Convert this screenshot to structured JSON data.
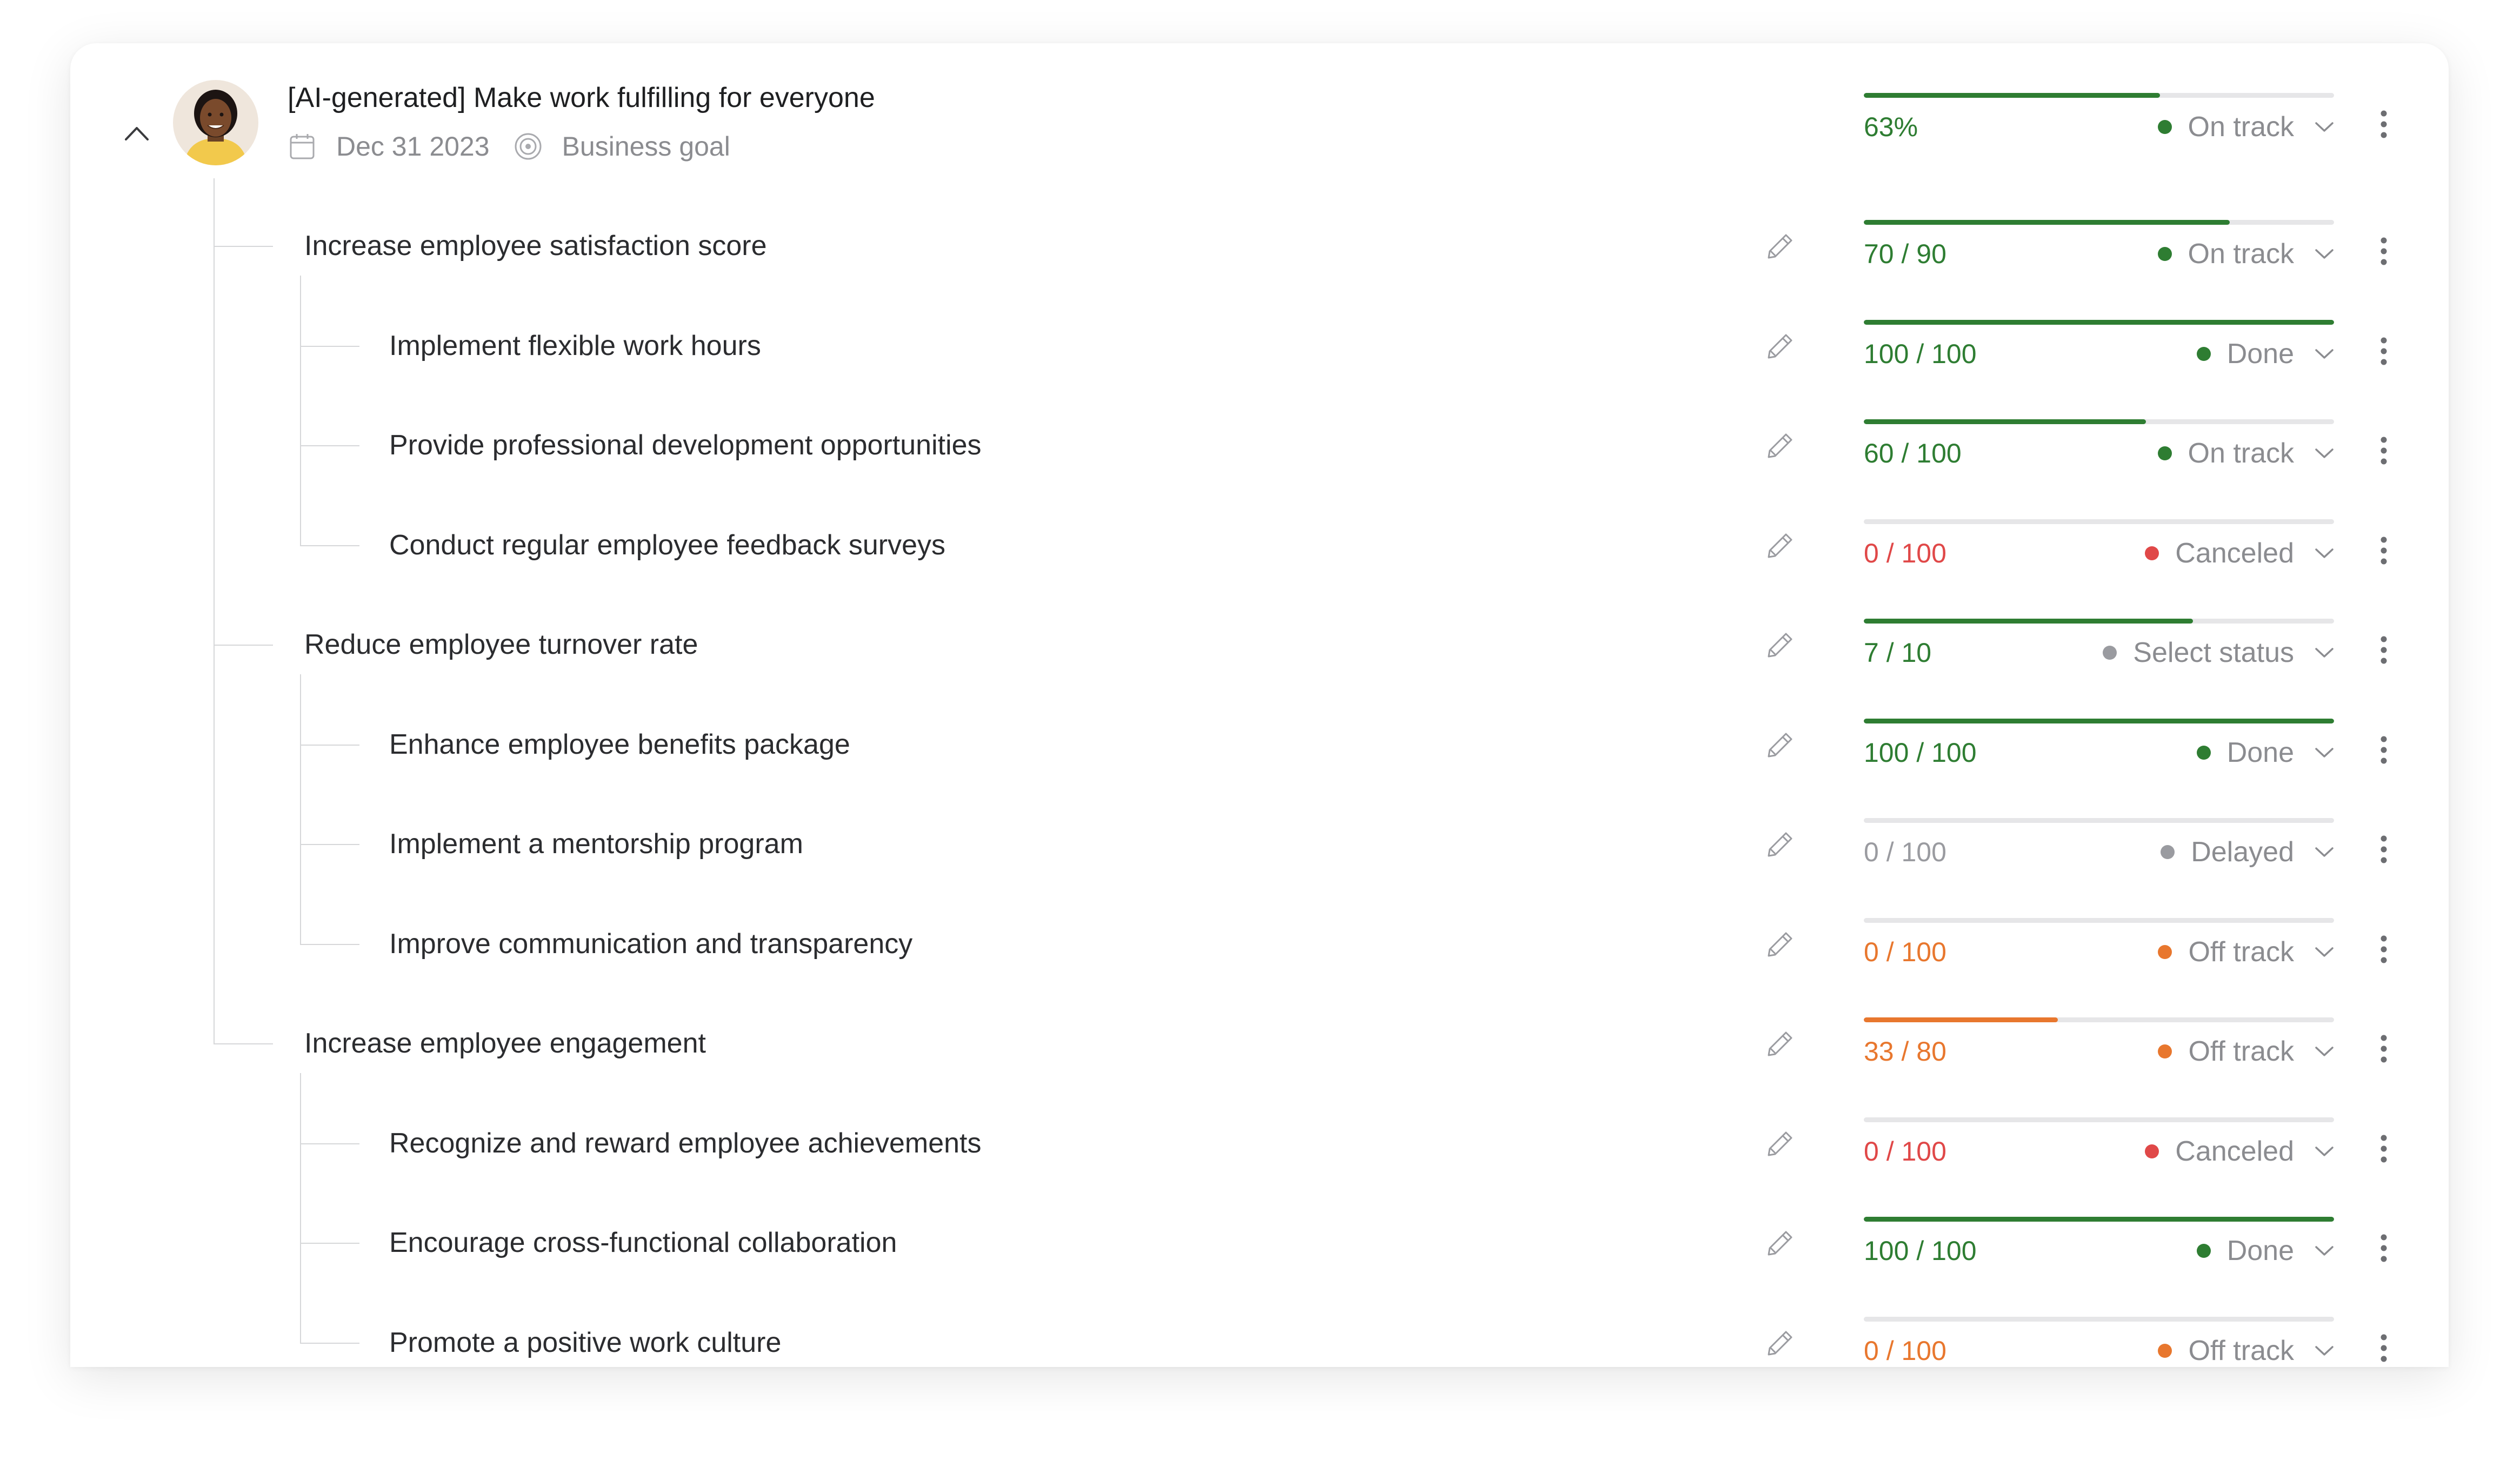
{
  "goal": {
    "title": "[AI-generated] Make work fulfilling for everyone",
    "due_date": "Dec 31 2023",
    "type_label": "Business goal",
    "progress_text": "63%",
    "progress": 0.63,
    "status": "On track",
    "status_color": "#2e7d32"
  },
  "colors": {
    "green": "#2e7d32",
    "orange": "#e8772e",
    "red": "#e04848",
    "gray": "#9a9ba0",
    "track": "#e6e6e8",
    "line": "#d6d7d9"
  },
  "rows": [
    {
      "label": "Increase employee satisfaction score",
      "level": 1,
      "progress_text": "70 / 90",
      "progress": 0.778,
      "text_color": "#2e7d32",
      "bar_color": "#2e7d32",
      "status": "On track",
      "dot_color": "#2e7d32"
    },
    {
      "label": "Implement flexible work hours",
      "level": 2,
      "progress_text": "100 / 100",
      "progress": 1.0,
      "text_color": "#2e7d32",
      "bar_color": "#2e7d32",
      "status": "Done",
      "dot_color": "#2e7d32"
    },
    {
      "label": "Provide professional development opportunities",
      "level": 2,
      "progress_text": "60 / 100",
      "progress": 0.6,
      "text_color": "#2e7d32",
      "bar_color": "#2e7d32",
      "status": "On track",
      "dot_color": "#2e7d32"
    },
    {
      "label": "Conduct regular employee feedback surveys",
      "level": 2,
      "progress_text": "0 / 100",
      "progress": 0.0,
      "text_color": "#e04848",
      "bar_color": "#e04848",
      "status": "Canceled",
      "dot_color": "#e04848"
    },
    {
      "label": "Reduce employee turnover rate",
      "level": 1,
      "progress_text": "7 / 10",
      "progress": 0.7,
      "text_color": "#2e7d32",
      "bar_color": "#2e7d32",
      "status": "Select status",
      "dot_color": "#9a9ba0"
    },
    {
      "label": "Enhance employee benefits package",
      "level": 2,
      "progress_text": "100 / 100",
      "progress": 1.0,
      "text_color": "#2e7d32",
      "bar_color": "#2e7d32",
      "status": "Done",
      "dot_color": "#2e7d32"
    },
    {
      "label": "Implement a mentorship program",
      "level": 2,
      "progress_text": "0 / 100",
      "progress": 0.0,
      "text_color": "#9a9ba0",
      "bar_color": "#9a9ba0",
      "status": "Delayed",
      "dot_color": "#9a9ba0"
    },
    {
      "label": "Improve communication and transparency",
      "level": 2,
      "progress_text": "0 / 100",
      "progress": 0.0,
      "text_color": "#e8772e",
      "bar_color": "#e8772e",
      "status": "Off track",
      "dot_color": "#e8772e"
    },
    {
      "label": "Increase employee engagement",
      "level": 1,
      "progress_text": "33 / 80",
      "progress": 0.4125,
      "text_color": "#e8772e",
      "bar_color": "#e8772e",
      "status": "Off track",
      "dot_color": "#e8772e"
    },
    {
      "label": "Recognize and reward employee achievements",
      "level": 2,
      "progress_text": "0 / 100",
      "progress": 0.0,
      "text_color": "#e04848",
      "bar_color": "#e04848",
      "status": "Canceled",
      "dot_color": "#e04848"
    },
    {
      "label": "Encourage cross-functional collaboration",
      "level": 2,
      "progress_text": "100 / 100",
      "progress": 1.0,
      "text_color": "#2e7d32",
      "bar_color": "#2e7d32",
      "status": "Done",
      "dot_color": "#2e7d32"
    },
    {
      "label": "Promote a positive work culture",
      "level": 2,
      "progress_text": "0 / 100",
      "progress": 0.0,
      "text_color": "#e8772e",
      "bar_color": "#e8772e",
      "status": "Off track",
      "dot_color": "#e8772e"
    }
  ]
}
